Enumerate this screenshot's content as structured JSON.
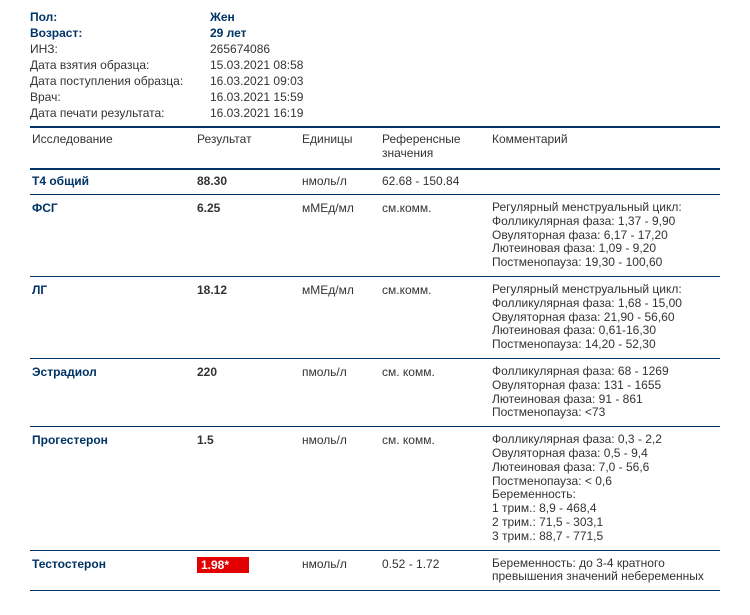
{
  "colors": {
    "brand": "#003366",
    "text": "#333333",
    "flag_bg": "#e30000",
    "flag_fg": "#ffffff",
    "sheet_bg": "#ffffff",
    "outer_bg": "#1a1a1a"
  },
  "meta": {
    "sex_label": "Пол:",
    "sex_value": "Жен",
    "age_label": "Возраст:",
    "age_value": "29 лет",
    "inz_label": "ИНЗ:",
    "inz_value": "265674086",
    "sample_taken_label": "Дата взятия образца:",
    "sample_taken_value": "15.03.2021 08:58",
    "sample_received_label": "Дата поступления образца:",
    "sample_received_value": "16.03.2021 09:03",
    "doctor_label": "Врач:",
    "doctor_value": "16.03.2021 15:59",
    "print_label": "Дата печати результата:",
    "print_value": "16.03.2021 16:19"
  },
  "headers": {
    "test": "Исследование",
    "result": "Результат",
    "units": "Единицы",
    "ref": "Референсные значения",
    "comment": "Комментарий"
  },
  "rows": [
    {
      "test": "Т4 общий",
      "result": "88.30",
      "flagged": false,
      "units": "нмоль/л",
      "ref": "62.68 - 150.84",
      "comment": []
    },
    {
      "test": "ФСГ",
      "result": "6.25",
      "flagged": false,
      "units": "мМЕд/мл",
      "ref": "см.комм.",
      "comment": [
        "Регулярный менструальный цикл:",
        "Фолликулярная фаза: 1,37 - 9,90",
        "Овуляторная фаза: 6,17 - 17,20",
        "Лютеиновая фаза: 1,09 - 9,20",
        "Постменопауза: 19,30 - 100,60"
      ]
    },
    {
      "test": "ЛГ",
      "result": "18.12",
      "flagged": false,
      "units": "мМЕд/мл",
      "ref": "см.комм.",
      "comment": [
        "Регулярный менструальный цикл:",
        "Фолликулярная фаза: 1,68 - 15,00",
        "Овуляторная фаза: 21,90 - 56,60",
        "Лютеиновая фаза: 0,61-16,30",
        "Постменопауза: 14,20 - 52,30"
      ]
    },
    {
      "test": "Эстрадиол",
      "result": "220",
      "flagged": false,
      "units": "пмоль/л",
      "ref": "см. комм.",
      "comment": [
        "Фолликулярная фаза: 68 - 1269",
        "Овуляторная фаза: 131 - 1655",
        "Лютеиновая фаза: 91 - 861",
        "Постменопауза: <73"
      ]
    },
    {
      "test": "Прогестерон",
      "result": "1.5",
      "flagged": false,
      "units": "нмоль/л",
      "ref": "см. комм.",
      "comment": [
        "Фолликулярная фаза: 0,3 - 2,2",
        "Овуляторная фаза: 0,5 - 9,4",
        "Лютеиновая фаза: 7,0 - 56,6",
        "Постменопауза: < 0,6",
        "Беременность:",
        "1 трим.: 8,9 - 468,4",
        "2 трим.: 71,5 - 303,1",
        "3 трим.: 88,7 - 771,5"
      ]
    },
    {
      "test": "Тестостерон",
      "result": "1.98*",
      "flagged": true,
      "units": "нмоль/л",
      "ref": "0.52 - 1.72",
      "comment": [
        "Беременность: до 3-4 кратного",
        "превышения значений небеременных"
      ]
    }
  ]
}
